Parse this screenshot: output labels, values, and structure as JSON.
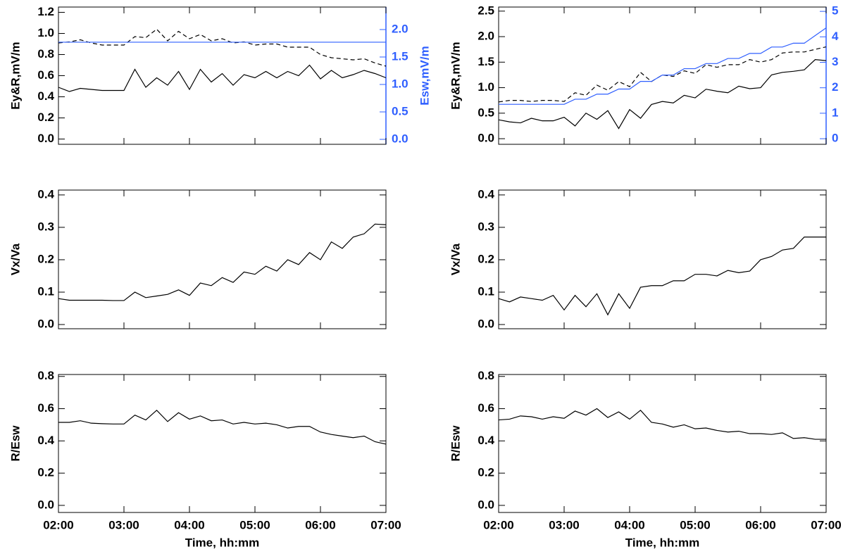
{
  "chart_data": [
    {
      "type": "line",
      "ylabel": "Ey&R,mV/m",
      "y2label": "Esw,mV/m",
      "x": [
        "02:00",
        "02:10",
        "02:20",
        "02:30",
        "02:40",
        "02:50",
        "03:00",
        "03:10",
        "03:20",
        "03:30",
        "03:40",
        "03:50",
        "04:00",
        "04:10",
        "04:20",
        "04:30",
        "04:40",
        "04:50",
        "05:00",
        "05:10",
        "05:20",
        "05:30",
        "05:40",
        "05:50",
        "06:00",
        "06:10",
        "06:20",
        "06:30",
        "06:40",
        "06:50",
        "07:00"
      ],
      "xlim": [
        "02:00",
        "07:00"
      ],
      "xticks": [
        "02:00",
        "03:00",
        "04:00",
        "05:00",
        "06:00",
        "07:00"
      ],
      "xtick_labels": false,
      "ylim": [
        -0.05,
        1.25
      ],
      "yticks": [
        {
          "value": 0,
          "label": "0.0"
        },
        0.2,
        0.4,
        0.6,
        0.8,
        {
          "value": 1,
          "label": "1.0"
        },
        1.2
      ],
      "y2lim": [
        -0.09,
        2.41
      ],
      "y2ticks": [
        {
          "value": 0,
          "label": "0.0"
        },
        0.5,
        {
          "value": 1,
          "label": "1.0"
        },
        1.5,
        {
          "value": 2,
          "label": "2.0"
        }
      ],
      "y2color": "#2f5fff",
      "series": [
        {
          "color": "#000000",
          "dash": false,
          "values": [
            0.49,
            0.45,
            0.48,
            0.47,
            0.46,
            0.46,
            0.46,
            0.66,
            0.49,
            0.58,
            0.51,
            0.64,
            0.47,
            0.66,
            0.54,
            0.62,
            0.51,
            0.61,
            0.58,
            0.64,
            0.58,
            0.64,
            0.6,
            0.7,
            0.57,
            0.65,
            0.58,
            0.61,
            0.65,
            0.62,
            0.58
          ]
        },
        {
          "color": "#000000",
          "dash": true,
          "values": [
            0.91,
            0.92,
            0.94,
            0.91,
            0.89,
            0.89,
            0.89,
            0.97,
            0.96,
            1.04,
            0.93,
            1.02,
            0.95,
            0.99,
            0.93,
            0.95,
            0.91,
            0.92,
            0.89,
            0.9,
            0.9,
            0.87,
            0.87,
            0.87,
            0.8,
            0.77,
            0.76,
            0.75,
            0.76,
            0.72,
            0.69
          ]
        },
        {
          "color": "#2f5fff",
          "dash": false,
          "axis": "y2",
          "values": [
            1.77,
            1.77,
            1.77,
            1.77,
            1.77,
            1.77,
            1.77,
            1.77,
            1.77,
            1.77,
            1.77,
            1.77,
            1.77,
            1.77,
            1.77,
            1.77,
            1.77,
            1.77,
            1.77,
            1.77,
            1.77,
            1.77,
            1.77,
            1.77,
            1.77,
            1.77,
            1.77,
            1.77,
            1.77,
            1.77,
            1.77
          ]
        }
      ]
    },
    {
      "type": "line",
      "ylabel": "Ey&R,mV/m",
      "y2label": "Esw,mV/m",
      "x": [
        "02:00",
        "02:10",
        "02:20",
        "02:30",
        "02:40",
        "02:50",
        "03:00",
        "03:10",
        "03:20",
        "03:30",
        "03:40",
        "03:50",
        "04:00",
        "04:10",
        "04:20",
        "04:30",
        "04:40",
        "04:50",
        "05:00",
        "05:10",
        "05:20",
        "05:30",
        "05:40",
        "05:50",
        "06:00",
        "06:10",
        "06:20",
        "06:30",
        "06:40",
        "06:50",
        "07:00"
      ],
      "xlim": [
        "02:00",
        "07:00"
      ],
      "xticks": [
        "02:00",
        "03:00",
        "04:00",
        "05:00",
        "06:00",
        "07:00"
      ],
      "xtick_labels": false,
      "ylim": [
        -0.11,
        2.58
      ],
      "yticks": [
        {
          "value": 0,
          "label": "0.0"
        },
        0.5,
        {
          "value": 1,
          "label": "1.0"
        },
        1.5,
        {
          "value": 2,
          "label": "2.0"
        },
        2.5
      ],
      "y2lim": [
        -0.22,
        5.17
      ],
      "y2ticks": [
        0,
        1,
        2,
        3,
        4,
        5
      ],
      "y2color": "#2f5fff",
      "series": [
        {
          "color": "#000000",
          "dash": false,
          "values": [
            0.37,
            0.33,
            0.31,
            0.4,
            0.35,
            0.35,
            0.42,
            0.25,
            0.5,
            0.38,
            0.55,
            0.2,
            0.57,
            0.4,
            0.67,
            0.73,
            0.7,
            0.85,
            0.8,
            0.97,
            0.93,
            0.9,
            1.03,
            0.98,
            1.0,
            1.25,
            1.3,
            1.32,
            1.35,
            1.55,
            1.53
          ]
        },
        {
          "color": "#000000",
          "dash": true,
          "values": [
            0.72,
            0.75,
            0.75,
            0.73,
            0.75,
            0.75,
            0.73,
            0.9,
            0.85,
            1.05,
            0.95,
            1.12,
            1.02,
            1.3,
            1.12,
            1.25,
            1.22,
            1.33,
            1.28,
            1.45,
            1.4,
            1.45,
            1.45,
            1.55,
            1.5,
            1.55,
            1.68,
            1.7,
            1.7,
            1.75,
            1.8
          ]
        },
        {
          "color": "#2f5fff",
          "dash": false,
          "axis": "y2",
          "values": [
            1.35,
            1.35,
            1.35,
            1.35,
            1.35,
            1.35,
            1.35,
            1.55,
            1.55,
            1.75,
            1.75,
            1.95,
            1.95,
            2.25,
            2.25,
            2.5,
            2.5,
            2.75,
            2.75,
            2.95,
            2.95,
            3.15,
            3.15,
            3.35,
            3.35,
            3.6,
            3.6,
            3.75,
            3.75,
            4.05,
            4.35
          ]
        }
      ]
    },
    {
      "type": "line",
      "ylabel": "Vx/Va",
      "x": [
        "02:00",
        "02:10",
        "02:20",
        "02:30",
        "02:40",
        "02:50",
        "03:00",
        "03:10",
        "03:20",
        "03:30",
        "03:40",
        "03:50",
        "04:00",
        "04:10",
        "04:20",
        "04:30",
        "04:40",
        "04:50",
        "05:00",
        "05:10",
        "05:20",
        "05:30",
        "05:40",
        "05:50",
        "06:00",
        "06:10",
        "06:20",
        "06:30",
        "06:40",
        "06:50",
        "07:00"
      ],
      "xlim": [
        "02:00",
        "07:00"
      ],
      "xticks": [
        "02:00",
        "03:00",
        "04:00",
        "05:00",
        "06:00",
        "07:00"
      ],
      "xtick_labels": false,
      "ylim": [
        -0.013,
        0.415
      ],
      "yticks": [
        {
          "value": 0,
          "label": "0.0"
        },
        0.1,
        0.2,
        0.3,
        0.4
      ],
      "series": [
        {
          "color": "#000000",
          "dash": false,
          "values": [
            0.08,
            0.075,
            0.075,
            0.075,
            0.075,
            0.074,
            0.074,
            0.1,
            0.083,
            0.088,
            0.093,
            0.107,
            0.09,
            0.128,
            0.12,
            0.145,
            0.13,
            0.162,
            0.155,
            0.18,
            0.165,
            0.2,
            0.185,
            0.222,
            0.2,
            0.255,
            0.235,
            0.27,
            0.28,
            0.31,
            0.308
          ]
        }
      ]
    },
    {
      "type": "line",
      "ylabel": "Vx/Va",
      "x": [
        "02:00",
        "02:10",
        "02:20",
        "02:30",
        "02:40",
        "02:50",
        "03:00",
        "03:10",
        "03:20",
        "03:30",
        "03:40",
        "03:50",
        "04:00",
        "04:10",
        "04:20",
        "04:30",
        "04:40",
        "04:50",
        "05:00",
        "05:10",
        "05:20",
        "05:30",
        "05:40",
        "05:50",
        "06:00",
        "06:10",
        "06:20",
        "06:30",
        "06:40",
        "06:50",
        "07:00"
      ],
      "xlim": [
        "02:00",
        "07:00"
      ],
      "xticks": [
        "02:00",
        "03:00",
        "04:00",
        "05:00",
        "06:00",
        "07:00"
      ],
      "xtick_labels": false,
      "ylim": [
        -0.013,
        0.415
      ],
      "yticks": [
        {
          "value": 0,
          "label": "0.0"
        },
        0.1,
        0.2,
        0.3,
        0.4
      ],
      "series": [
        {
          "color": "#000000",
          "dash": false,
          "values": [
            0.08,
            0.07,
            0.085,
            0.08,
            0.075,
            0.09,
            0.045,
            0.09,
            0.055,
            0.095,
            0.03,
            0.095,
            0.05,
            0.115,
            0.12,
            0.12,
            0.135,
            0.135,
            0.155,
            0.155,
            0.15,
            0.167,
            0.16,
            0.165,
            0.2,
            0.21,
            0.23,
            0.235,
            0.27,
            0.27,
            0.27
          ]
        }
      ]
    },
    {
      "type": "line",
      "ylabel": "R/Esw",
      "xlabel": "Time, hh:mm",
      "x": [
        "02:00",
        "02:10",
        "02:20",
        "02:30",
        "02:40",
        "02:50",
        "03:00",
        "03:10",
        "03:20",
        "03:30",
        "03:40",
        "03:50",
        "04:00",
        "04:10",
        "04:20",
        "04:30",
        "04:40",
        "04:50",
        "05:00",
        "05:10",
        "05:20",
        "05:30",
        "05:40",
        "05:50",
        "06:00",
        "06:10",
        "06:20",
        "06:30",
        "06:40",
        "06:50",
        "07:00"
      ],
      "xlim": [
        "02:00",
        "07:00"
      ],
      "xticks": [
        "02:00",
        "03:00",
        "04:00",
        "05:00",
        "06:00",
        "07:00"
      ],
      "xtick_labels": true,
      "ylim": [
        -0.044,
        0.812
      ],
      "yticks": [
        {
          "value": 0,
          "label": "0.0"
        },
        0.2,
        0.4,
        0.6,
        0.8
      ],
      "series": [
        {
          "color": "#000000",
          "dash": false,
          "values": [
            0.515,
            0.515,
            0.525,
            0.51,
            0.507,
            0.505,
            0.505,
            0.56,
            0.53,
            0.59,
            0.52,
            0.575,
            0.535,
            0.555,
            0.525,
            0.53,
            0.505,
            0.515,
            0.505,
            0.51,
            0.5,
            0.48,
            0.49,
            0.49,
            0.455,
            0.44,
            0.43,
            0.42,
            0.43,
            0.395,
            0.38
          ]
        }
      ]
    },
    {
      "type": "line",
      "ylabel": "R/Esw",
      "xlabel": "Time, hh:mm",
      "x": [
        "02:00",
        "02:10",
        "02:20",
        "02:30",
        "02:40",
        "02:50",
        "03:00",
        "03:10",
        "03:20",
        "03:30",
        "03:40",
        "03:50",
        "04:00",
        "04:10",
        "04:20",
        "04:30",
        "04:40",
        "04:50",
        "05:00",
        "05:10",
        "05:20",
        "05:30",
        "05:40",
        "05:50",
        "06:00",
        "06:10",
        "06:20",
        "06:30",
        "06:40",
        "06:50",
        "07:00"
      ],
      "xlim": [
        "02:00",
        "07:00"
      ],
      "xticks": [
        "02:00",
        "03:00",
        "04:00",
        "05:00",
        "06:00",
        "07:00"
      ],
      "xtick_labels": true,
      "ylim": [
        -0.044,
        0.812
      ],
      "yticks": [
        {
          "value": 0,
          "label": "0.0"
        },
        0.2,
        0.4,
        0.6,
        0.8
      ],
      "series": [
        {
          "color": "#000000",
          "dash": false,
          "values": [
            0.53,
            0.535,
            0.555,
            0.55,
            0.535,
            0.55,
            0.54,
            0.585,
            0.56,
            0.6,
            0.545,
            0.58,
            0.535,
            0.59,
            0.515,
            0.505,
            0.485,
            0.5,
            0.475,
            0.48,
            0.465,
            0.455,
            0.46,
            0.445,
            0.445,
            0.44,
            0.45,
            0.415,
            0.42,
            0.41,
            0.41
          ]
        }
      ]
    }
  ]
}
